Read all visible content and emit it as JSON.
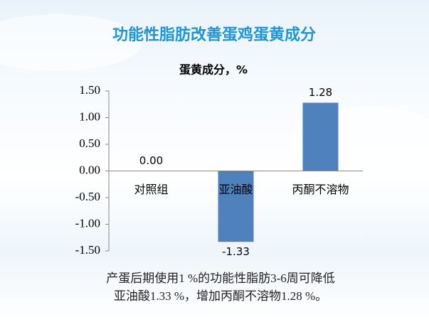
{
  "chart_data": {
    "type": "bar",
    "title": "功能性脂肪改善蛋鸡蛋黄成分",
    "y_label": "蛋黄成分，%",
    "categories": [
      "对照组",
      "亚油酸",
      "丙酮不溶物"
    ],
    "values": [
      0,
      -1.33,
      1.28
    ],
    "value_labels": [
      "0.00",
      "-1.33",
      "1.28"
    ],
    "color": "#4f81bd",
    "ylim": [
      -1.5,
      1.5
    ],
    "yticks": [
      {
        "value": 1.5,
        "label": "1.50"
      },
      {
        "value": 1,
        "label": "1.00"
      },
      {
        "value": 0.5,
        "label": "0.50"
      },
      {
        "value": 0,
        "label": "0.00"
      },
      {
        "value": -0.5,
        "label": "-0.50"
      },
      {
        "value": -1,
        "label": "-1.00"
      },
      {
        "value": -1.5,
        "label": "-1.50"
      }
    ],
    "grid": false,
    "caption": [
      "产蛋后期使用1 %的功能性脂肪3-6周可降低",
      "亚油酸1.33 %，增加丙酮不溶物1.28 %。"
    ]
  }
}
